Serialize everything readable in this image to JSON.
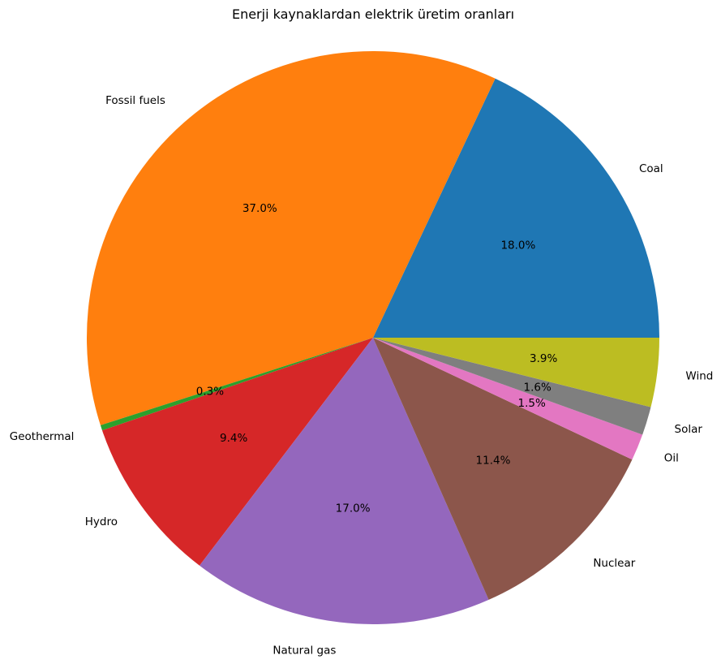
{
  "chart_data": {
    "type": "pie",
    "title": "Enerji kaynaklardan elektrik üretim oranları",
    "slices": [
      {
        "label": "Coal",
        "value": 18.0,
        "pct_label": "18.0%",
        "color": "#1f77b4"
      },
      {
        "label": "Fossil fuels",
        "value": 37.0,
        "pct_label": "37.0%",
        "color": "#ff7f0e"
      },
      {
        "label": "Geothermal",
        "value": 0.3,
        "pct_label": "0.3%",
        "color": "#2ca02c"
      },
      {
        "label": "Hydro",
        "value": 9.4,
        "pct_label": "9.4%",
        "color": "#d62728"
      },
      {
        "label": "Natural gas",
        "value": 17.0,
        "pct_label": "17.0%",
        "color": "#9467bd"
      },
      {
        "label": "Nuclear",
        "value": 11.4,
        "pct_label": "11.4%",
        "color": "#8c564b"
      },
      {
        "label": "Oil",
        "value": 1.5,
        "pct_label": "1.5%",
        "color": "#e377c2"
      },
      {
        "label": "Solar",
        "value": 1.6,
        "pct_label": "1.6%",
        "color": "#7f7f7f"
      },
      {
        "label": "Wind",
        "value": 3.9,
        "pct_label": "3.9%",
        "color": "#bcbd22"
      }
    ],
    "start_angle_deg": 0,
    "direction": "counterclockwise"
  }
}
